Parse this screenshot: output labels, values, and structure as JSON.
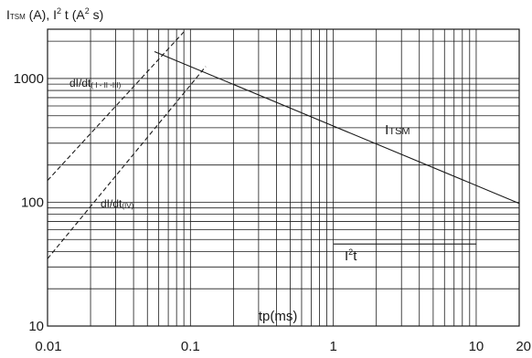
{
  "chart_data": {
    "type": "line",
    "title": "ITSM (A), I² t (A² s)",
    "title_parts": {
      "itsm_main": "I",
      "itsm_sub": "TSM",
      "rest_a": " (A), I",
      "sup_1": "2",
      "rest_b": " t (A",
      "sup_2": "2",
      "rest_c": " s)"
    },
    "xlabel": "tp(ms)",
    "ylabel": "",
    "x_scale": "log",
    "y_scale": "log",
    "xlim": [
      0.01,
      20
    ],
    "ylim": [
      10,
      2500
    ],
    "grid": true,
    "x_tick_labels": [
      "0.01",
      "0.1",
      "1",
      "10",
      "20"
    ],
    "y_tick_labels": [
      "10",
      "100",
      "1000"
    ],
    "series": [
      {
        "name": "ITSM",
        "label_main": "I",
        "label_sub": "TSM",
        "style": "solid",
        "x": [
          0.056,
          20
        ],
        "y": [
          1650,
          98
        ]
      },
      {
        "name": "I²t",
        "label_main": "I",
        "label_sup": "2",
        "label_rest": "t",
        "style": "solid",
        "x": [
          1,
          10
        ],
        "y": [
          46,
          46
        ]
      },
      {
        "name": "dI/dt (I-II-III)",
        "label_main": "dI/dt",
        "label_sub": "( I - II -III)",
        "style": "dashed",
        "x": [
          0.01,
          0.092
        ],
        "y": [
          150,
          2450
        ]
      },
      {
        "name": "dI/dt (IV)",
        "label_main": "dI/dt",
        "label_sub": "(IV)",
        "style": "dashed",
        "x": [
          0.01,
          0.128
        ],
        "y": [
          35,
          1250
        ]
      }
    ]
  }
}
